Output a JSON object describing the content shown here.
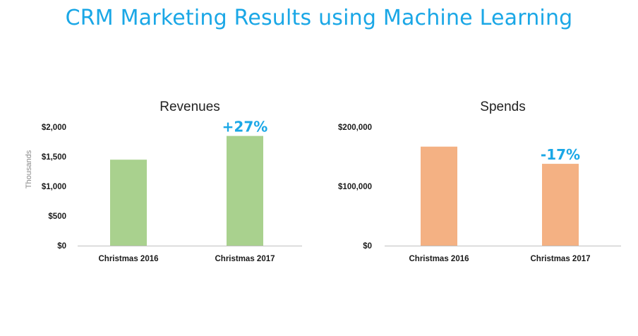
{
  "title": "CRM Marketing Results using Machine Learning",
  "colors": {
    "title": "#1aa7e6",
    "annotation": "#1aa7e6",
    "revenues_bar": "#a9d18e",
    "spends_bar": "#f4b183",
    "axis": "#bfbfbf"
  },
  "chart_data": [
    {
      "type": "bar",
      "title": "Revenues",
      "ylabel": "Thousands",
      "categories": [
        "Christmas 2016",
        "Christmas 2017"
      ],
      "values": [
        1450,
        1850
      ],
      "ylim": [
        0,
        2000
      ],
      "yticks": [
        0,
        500,
        1000,
        1500,
        2000
      ],
      "ytick_labels": [
        "$0",
        "$500",
        "$1,000",
        "$1,500",
        "$2,000"
      ],
      "annotations": [
        {
          "category": "Christmas 2017",
          "text": "+27%"
        }
      ],
      "grid": false,
      "color": "#a9d18e"
    },
    {
      "type": "bar",
      "title": "Spends",
      "ylabel": "",
      "categories": [
        "Christmas 2016",
        "Christmas 2017"
      ],
      "values": [
        167000,
        138000
      ],
      "ylim": [
        0,
        200000
      ],
      "yticks": [
        0,
        100000,
        200000
      ],
      "ytick_labels": [
        "$0",
        "$100,000",
        "$200,000"
      ],
      "annotations": [
        {
          "category": "Christmas 2017",
          "text": "-17%"
        }
      ],
      "grid": false,
      "color": "#f4b183"
    }
  ]
}
